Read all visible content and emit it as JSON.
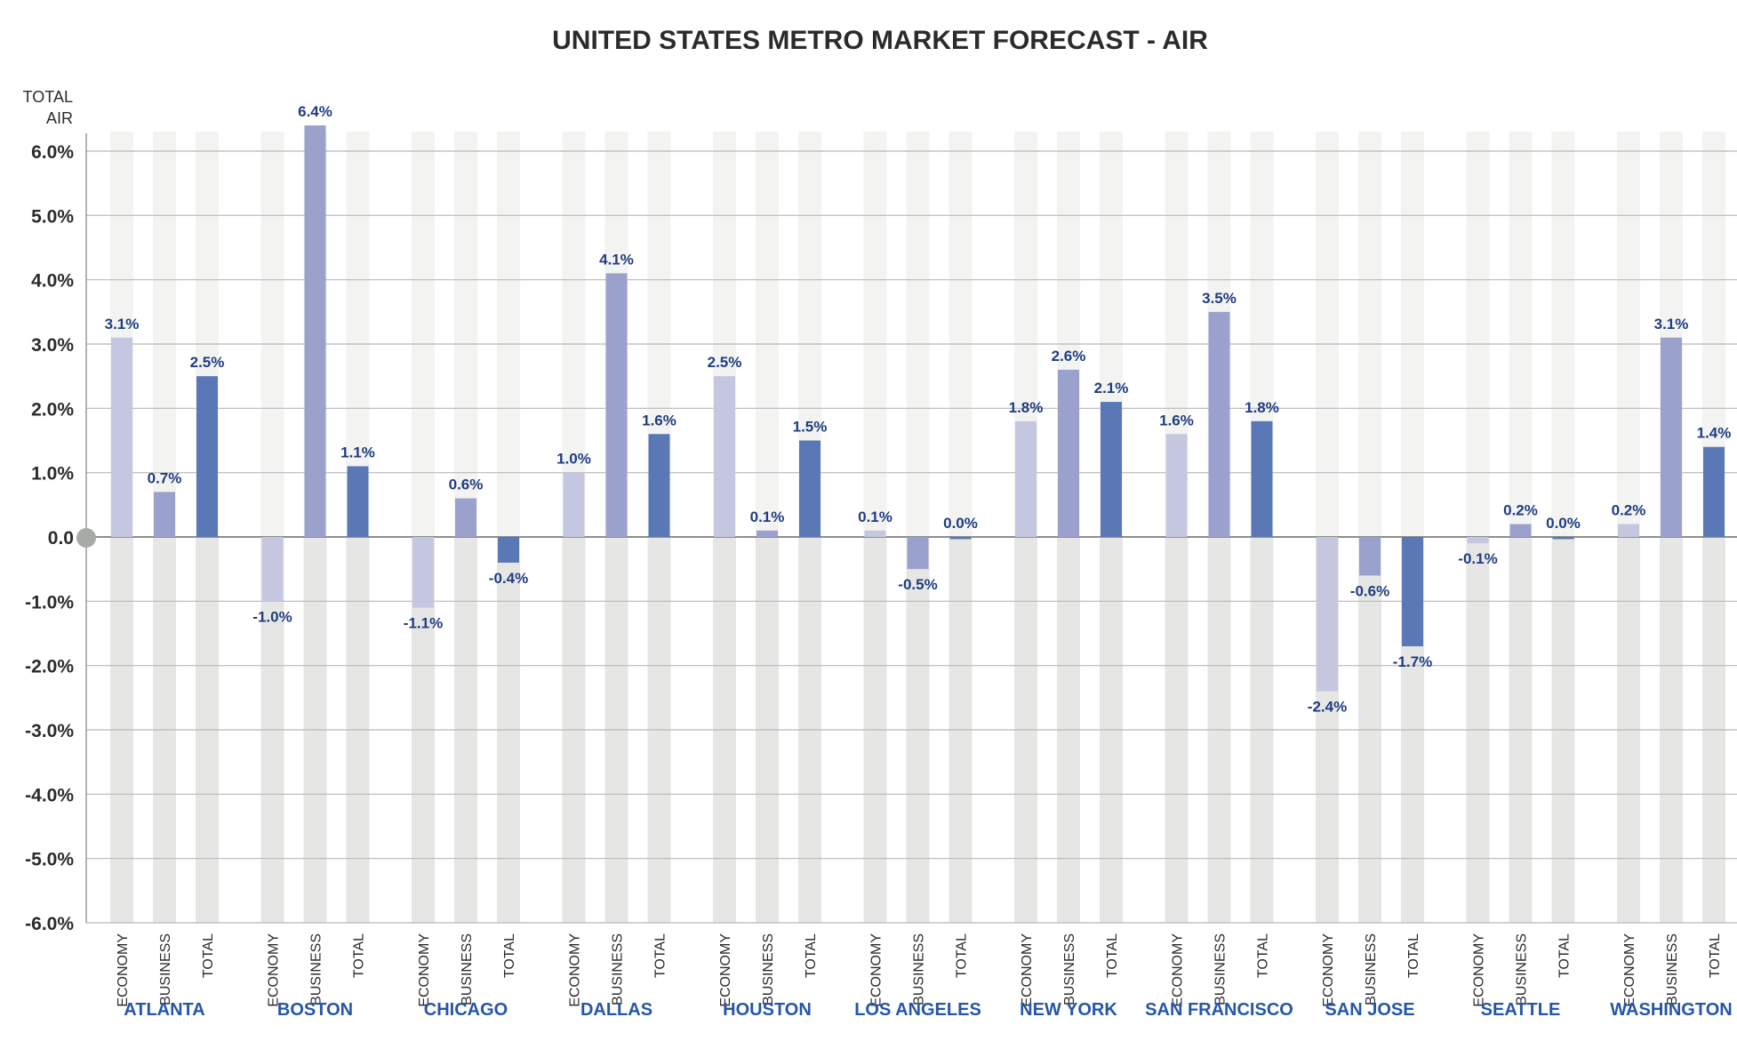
{
  "chart_data": {
    "type": "bar",
    "title": "UNITED STATES METRO MARKET FORECAST - AIR",
    "ylabel": "TOTAL AIR",
    "ylabel_lines": [
      "TOTAL",
      "AIR"
    ],
    "ylim": [
      -6.0,
      6.0
    ],
    "yticks": [
      "6.0%",
      "5.0%",
      "4.0%",
      "3.0%",
      "2.0%",
      "1.0%",
      "0.0",
      "-1.0%",
      "-2.0%",
      "-3.0%",
      "-4.0%",
      "-5.0%",
      "-6.0%"
    ],
    "grid": true,
    "subcategories": [
      "ECONOMY",
      "BUSINESS",
      "TOTAL"
    ],
    "categories": [
      "ATLANTA",
      "BOSTON",
      "CHICAGO",
      "DALLAS",
      "HOUSTON",
      "LOS ANGELES",
      "NEW YORK",
      "SAN FRANCISCO",
      "SAN JOSE",
      "SEATTLE",
      "WASHINGTON"
    ],
    "series": [
      {
        "name": "ECONOMY",
        "color": "#c5c7e0",
        "values": [
          3.1,
          -1.0,
          -1.1,
          1.0,
          2.5,
          0.1,
          1.8,
          1.6,
          -2.4,
          -0.1,
          0.2
        ],
        "labels": [
          "3.1%",
          "-1.0%",
          "-1.1%",
          "1.0%",
          "2.5%",
          "0.1%",
          "1.8%",
          "1.6%",
          "-2.4%",
          "-0.1%",
          "0.2%"
        ]
      },
      {
        "name": "BUSINESS",
        "color": "#9aa1cd",
        "values": [
          0.7,
          6.4,
          0.6,
          4.1,
          0.1,
          -0.5,
          2.6,
          3.5,
          -0.6,
          0.2,
          3.1
        ],
        "labels": [
          "0.7%",
          "6.4%",
          "0.6%",
          "4.1%",
          "0.1%",
          "-0.5%",
          "2.6%",
          "3.5%",
          "-0.6%",
          "0.2%",
          "3.1%"
        ]
      },
      {
        "name": "TOTAL",
        "color": "#5a78b6",
        "values": [
          2.5,
          1.1,
          -0.4,
          1.6,
          1.5,
          0.0,
          2.1,
          1.8,
          -1.7,
          0.0,
          1.4
        ],
        "labels": [
          "2.5%",
          "1.1%",
          "-0.4%",
          "1.6%",
          "1.5%",
          "0.0%",
          "2.1%",
          "1.8%",
          "-1.7%",
          "0.0%",
          "1.4%"
        ]
      }
    ]
  }
}
